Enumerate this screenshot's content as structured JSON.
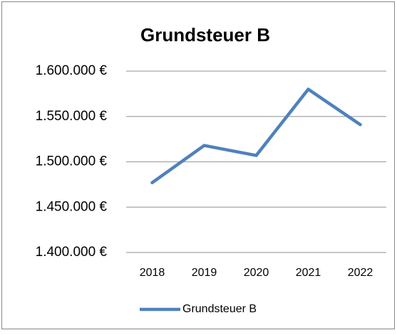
{
  "chart_data": {
    "type": "line",
    "title": "Grundsteuer B",
    "categories": [
      "2018",
      "2019",
      "2020",
      "2021",
      "2022"
    ],
    "series": [
      {
        "name": "Grundsteuer B",
        "color": "#4f81bd",
        "values": [
          1477000,
          1518000,
          1507000,
          1580000,
          1541000
        ]
      }
    ],
    "ylim": [
      1400000,
      1600000
    ],
    "yticks": [
      {
        "value": 1400000,
        "label": "1.400.000 €"
      },
      {
        "value": 1450000,
        "label": "1.450.000 €"
      },
      {
        "value": 1500000,
        "label": "1.500.000 €"
      },
      {
        "value": 1550000,
        "label": "1.550.000 €"
      },
      {
        "value": 1600000,
        "label": "1.600.000 €"
      }
    ],
    "grid": true,
    "legend": "bottom"
  }
}
